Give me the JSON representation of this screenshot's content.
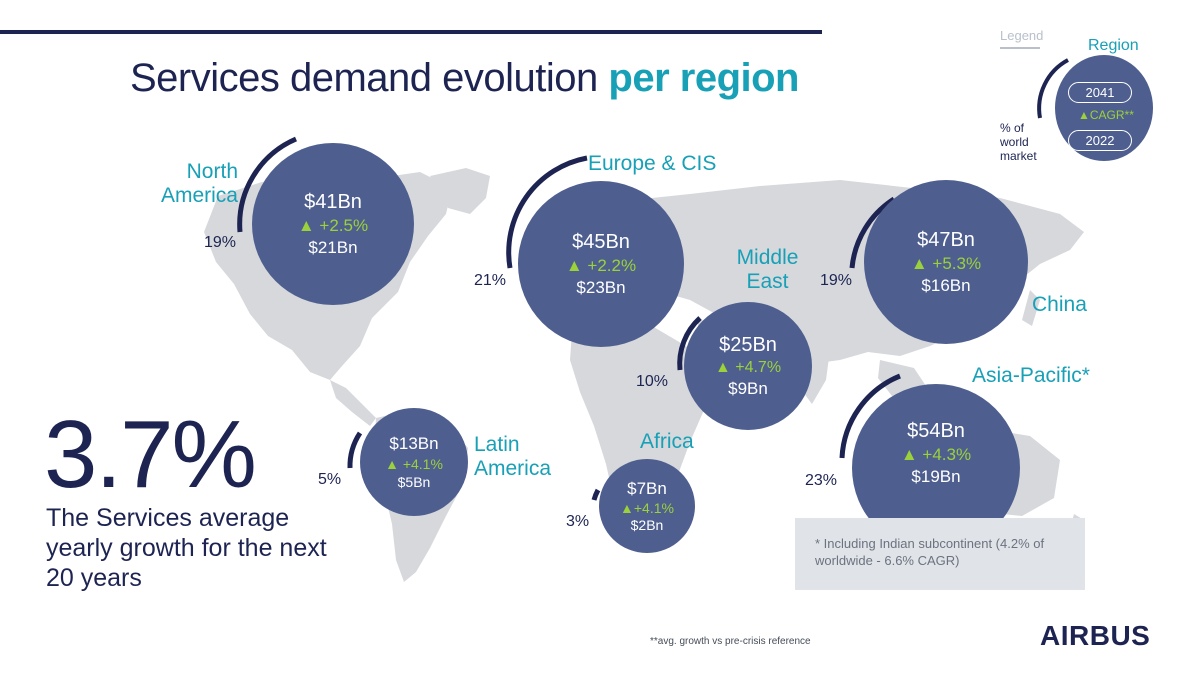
{
  "header": {
    "title_plain": "Services demand evolution",
    "title_highlight": "per region"
  },
  "legend": {
    "label": "Legend",
    "region": "Region",
    "year_top": "2041",
    "cagr": "▲CAGR**",
    "year_bottom": "2022",
    "pct_label": "% of world market"
  },
  "regions": {
    "north_america": {
      "name": "North America",
      "value_2041": "$41Bn",
      "cagr": "▲ +2.5%",
      "value_2022": "$21Bn",
      "share": "19%"
    },
    "europe_cis": {
      "name": "Europe & CIS",
      "value_2041": "$45Bn",
      "cagr": "▲ +2.2%",
      "value_2022": "$23Bn",
      "share": "21%"
    },
    "middle_east": {
      "name": "Middle East",
      "value_2041": "$25Bn",
      "cagr": "▲ +4.7%",
      "value_2022": "$9Bn",
      "share": "10%"
    },
    "china": {
      "name": "China",
      "value_2041": "$47Bn",
      "cagr": "▲ +5.3%",
      "value_2022": "$16Bn",
      "share": "19%"
    },
    "asia_pacific": {
      "name": "Asia-Pacific*",
      "value_2041": "$54Bn",
      "cagr": "▲ +4.3%",
      "value_2022": "$19Bn",
      "share": "23%"
    },
    "latin_america": {
      "name": "Latin America",
      "value_2041": "$13Bn",
      "cagr": "▲ +4.1%",
      "value_2022": "$5Bn",
      "share": "5%"
    },
    "africa": {
      "name": "Africa",
      "value_2041": "$7Bn",
      "cagr": "▲+4.1%",
      "value_2022": "$2Bn",
      "share": "3%"
    }
  },
  "headline": {
    "value": "3.7%",
    "caption": "The Services average yearly growth for the next 20 years"
  },
  "note": "* Including Indian subcontinent (4.2% of worldwide - 6.6% CAGR)",
  "footnote": "**avg. growth vs pre-crisis reference",
  "brand": "AIRBUS",
  "colors": {
    "navy": "#1d2452",
    "teal": "#18a0b7",
    "bubble": "#4e5f8f",
    "growth_green": "#9bd13a",
    "map_grey": "#d6d8dc"
  }
}
